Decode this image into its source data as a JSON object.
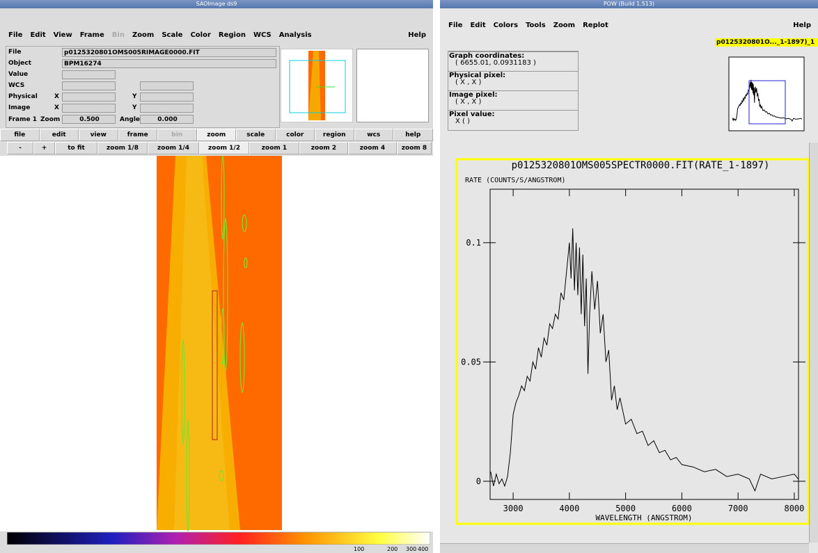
{
  "ds9": {
    "title": "SAOImage ds9",
    "menu": [
      "File",
      "Edit",
      "View",
      "Frame",
      "Bin",
      "Zoom",
      "Scale",
      "Color",
      "Region",
      "WCS",
      "Analysis"
    ],
    "help": "Help",
    "info": {
      "file_label": "File",
      "file": "p0125320801OMS005RIMAGE0000.FIT",
      "object_label": "Object",
      "object": "BPM16274",
      "value_label": "Value",
      "wcs_label": "WCS",
      "physical_label": "Physical",
      "image_label": "Image",
      "x": "X",
      "y": "Y",
      "frame_label": "Frame 1",
      "zoom_label": "Zoom",
      "zoom": "0.500",
      "angle_label": "Angle",
      "angle": "0.000"
    },
    "buttons": [
      "file",
      "edit",
      "view",
      "frame",
      "bin",
      "zoom",
      "scale",
      "color",
      "region",
      "wcs",
      "help"
    ],
    "zoom_buttons": [
      "-",
      "+",
      "to fit",
      "zoom 1/8",
      "zoom 1/4",
      "zoom 1/2",
      "zoom 1",
      "zoom 2",
      "zoom 4",
      "zoom 8"
    ],
    "colorbar_ticks": [
      100,
      200,
      300,
      400
    ]
  },
  "pow": {
    "title": "POW (Build 1.513)",
    "menu": [
      "File",
      "Edit",
      "Colors",
      "Tools",
      "Zoom",
      "Replot"
    ],
    "help": "Help",
    "graph_tag": "p0125320801O..._1-1897)_1",
    "info": [
      "Graph coordinates:",
      "( 6655.01, 0.0931183 )",
      "Physical pixel:",
      "( X , X )",
      "Image pixel:",
      "( X , X )",
      "Pixel value:",
      "X ( )"
    ],
    "chart_data": {
      "type": "line",
      "title": "p0125320801OMS005SPECTR0000.FIT(RATE_1-1897)",
      "y_label": "RATE (COUNTS/S/ANGSTROM)",
      "x_label": "WAVELENGTH (ANGSTROM)",
      "color": "#000000",
      "frame_color": "#ffff00",
      "xlim": [
        2590,
        8075
      ],
      "ylim": [
        -0.0076,
        0.1224
      ],
      "xticks": [
        3000,
        4000,
        5000,
        6000,
        7000,
        8000
      ],
      "yticks": [
        0,
        0.05,
        0.1
      ],
      "x": [
        2600,
        2650,
        2700,
        2750,
        2800,
        2850,
        2900,
        2950,
        3000,
        3050,
        3100,
        3150,
        3200,
        3250,
        3300,
        3350,
        3400,
        3450,
        3500,
        3550,
        3600,
        3650,
        3700,
        3750,
        3800,
        3850,
        3900,
        3950,
        4000,
        4030,
        4060,
        4090,
        4120,
        4150,
        4180,
        4210,
        4240,
        4270,
        4300,
        4330,
        4360,
        4400,
        4450,
        4500,
        4550,
        4600,
        4650,
        4700,
        4750,
        4800,
        4850,
        4900,
        5000,
        5100,
        5200,
        5300,
        5400,
        5500,
        5600,
        5700,
        5800,
        5900,
        6000,
        6200,
        6400,
        6600,
        6800,
        7000,
        7200,
        7300,
        7400,
        7600,
        7800,
        8000,
        8070
      ],
      "values": [
        0.004,
        -0.002,
        0.003,
        -0.001,
        0.001,
        -0.002,
        0.002,
        0.012,
        0.028,
        0.033,
        0.036,
        0.04,
        0.038,
        0.044,
        0.042,
        0.05,
        0.047,
        0.056,
        0.052,
        0.06,
        0.057,
        0.066,
        0.064,
        0.07,
        0.068,
        0.079,
        0.076,
        0.088,
        0.1,
        0.085,
        0.106,
        0.08,
        0.1,
        0.078,
        0.098,
        0.07,
        0.095,
        0.065,
        0.085,
        0.045,
        0.07,
        0.088,
        0.072,
        0.084,
        0.062,
        0.07,
        0.05,
        0.055,
        0.034,
        0.04,
        0.03,
        0.035,
        0.024,
        0.026,
        0.02,
        0.021,
        0.015,
        0.017,
        0.012,
        0.013,
        0.009,
        0.01,
        0.007,
        0.006,
        0.004,
        0.005,
        0.002,
        0.003,
        0.001,
        -0.004,
        0.003,
        0.001,
        0.002,
        0.003,
        0.001
      ]
    }
  }
}
